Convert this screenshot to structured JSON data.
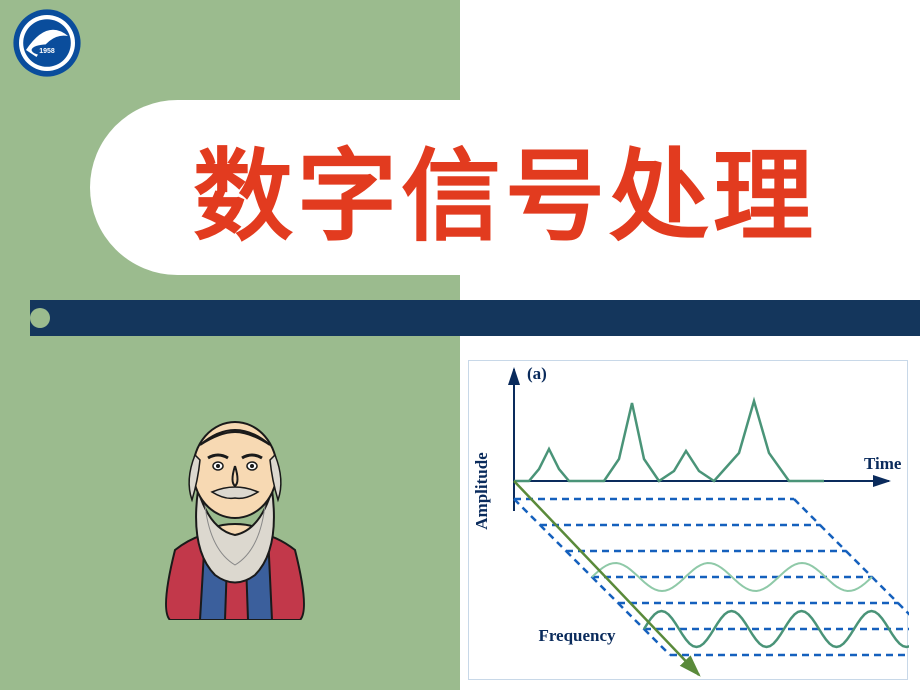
{
  "title": "数字信号处理",
  "logo": {
    "year": "1958",
    "ring_color": "#0a4d9c",
    "inner_color": "#ffffff",
    "swoosh_color": "#1b6fc2"
  },
  "colors": {
    "left_panel": "#9bbb8e",
    "title_text": "#e23b1f",
    "blue_bar": "#14365c",
    "diagram_border": "#c8d8e8"
  },
  "portrait": {
    "face": "#f7d9b3",
    "beard": "#dcd8cf",
    "robe_red": "#c2384a",
    "robe_blue": "#3b5f9c",
    "outline": "#1a1a1a"
  },
  "diagram": {
    "label_a": "(a)",
    "y_label": "Amplitude",
    "x_label": "Time",
    "freq_label": "Frequency",
    "axis_color": "#0a2b5c",
    "wave_main_color": "#4a9478",
    "wave_light_color": "#8fc9a8",
    "dash_color": "#1560bd",
    "freq_arrow_color": "#5a8a3a",
    "time_signal": [
      {
        "t": 0,
        "v": 0
      },
      {
        "t": 15,
        "v": 0
      },
      {
        "t": 25,
        "v": 12
      },
      {
        "t": 35,
        "v": 32
      },
      {
        "t": 45,
        "v": 12
      },
      {
        "t": 55,
        "v": 0
      },
      {
        "t": 90,
        "v": 0
      },
      {
        "t": 105,
        "v": 22
      },
      {
        "t": 118,
        "v": 78
      },
      {
        "t": 130,
        "v": 22
      },
      {
        "t": 145,
        "v": 0
      },
      {
        "t": 160,
        "v": 10
      },
      {
        "t": 172,
        "v": 30
      },
      {
        "t": 185,
        "v": 10
      },
      {
        "t": 200,
        "v": 0
      },
      {
        "t": 225,
        "v": 28
      },
      {
        "t": 240,
        "v": 80
      },
      {
        "t": 255,
        "v": 28
      },
      {
        "t": 275,
        "v": 0
      },
      {
        "t": 310,
        "v": 0
      }
    ],
    "freq_rows": 6,
    "sine_light": {
      "amp": 14,
      "periods": 3
    },
    "sine_main": {
      "amp": 18,
      "periods": 4
    }
  }
}
